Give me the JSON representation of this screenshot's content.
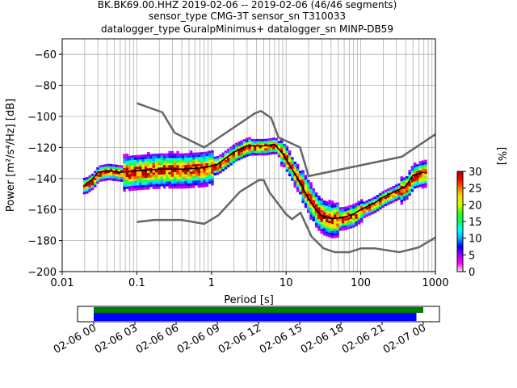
{
  "chart_data": {
    "type": "heatmap",
    "title_lines": [
      "BK.BK69.00.HHZ   2019-02-06 -- 2019-02-06  (46/46 segments)",
      "sensor_type CMG-3T sensor_sn T310033",
      "datalogger_type GuralpMinimus+ datalogger_sn MINP-DB59"
    ],
    "xlabel": "Period [s]",
    "ylabel": "Power [m²/s⁴/Hz] [dB]",
    "xscale": "log",
    "xlim": [
      0.01,
      1000
    ],
    "ylim": [
      -200,
      -50
    ],
    "grid": true,
    "x_ticks": [
      {
        "value": 0.01,
        "label": "0.01"
      },
      {
        "value": 0.1,
        "label": "0.1"
      },
      {
        "value": 1,
        "label": "1"
      },
      {
        "value": 10,
        "label": "10"
      },
      {
        "value": 100,
        "label": "100"
      },
      {
        "value": 1000,
        "label": "1000"
      }
    ],
    "y_ticks": [
      -60,
      -80,
      -100,
      -120,
      -140,
      -160,
      -180,
      -200
    ],
    "colorbar": {
      "label": "[%]",
      "range": [
        0,
        30
      ],
      "ticks": [
        0,
        5,
        10,
        15,
        20,
        25,
        30
      ],
      "colors": [
        "#ffffff",
        "#ff00ff",
        "#9900ff",
        "#0000ff",
        "#00aaff",
        "#00ffff",
        "#00ff66",
        "#33ff00",
        "#ccff00",
        "#ffdd00",
        "#ff7700",
        "#ff0000",
        "#aa0000"
      ]
    },
    "noise_models": {
      "color": "#666666",
      "high": [
        {
          "x": 0.1,
          "y": -91.5
        },
        {
          "x": 0.22,
          "y": -97.4
        },
        {
          "x": 0.32,
          "y": -110.5
        },
        {
          "x": 0.8,
          "y": -120
        },
        {
          "x": 3.8,
          "y": -98
        },
        {
          "x": 4.6,
          "y": -96.5
        },
        {
          "x": 6.3,
          "y": -101
        },
        {
          "x": 7.9,
          "y": -113.5
        },
        {
          "x": 15.4,
          "y": -120
        },
        {
          "x": 20,
          "y": -138.5
        },
        {
          "x": 354.8,
          "y": -126
        },
        {
          "x": 1000,
          "y": -111.5
        }
      ],
      "low": [
        {
          "x": 0.1,
          "y": -168
        },
        {
          "x": 0.17,
          "y": -166.7
        },
        {
          "x": 0.4,
          "y": -166.7
        },
        {
          "x": 0.8,
          "y": -169.2
        },
        {
          "x": 1.24,
          "y": -163.7
        },
        {
          "x": 2.4,
          "y": -148.6
        },
        {
          "x": 4.3,
          "y": -141.1
        },
        {
          "x": 5.0,
          "y": -141.1
        },
        {
          "x": 6.0,
          "y": -149
        },
        {
          "x": 10.0,
          "y": -163
        },
        {
          "x": 12.0,
          "y": -166.2
        },
        {
          "x": 15.6,
          "y": -162.1
        },
        {
          "x": 21.9,
          "y": -177.5
        },
        {
          "x": 31.6,
          "y": -185
        },
        {
          "x": 45,
          "y": -187.5
        },
        {
          "x": 70,
          "y": -187.5
        },
        {
          "x": 101,
          "y": -185
        },
        {
          "x": 154,
          "y": -185
        },
        {
          "x": 328,
          "y": -187.5
        },
        {
          "x": 600,
          "y": -184.4
        },
        {
          "x": 1000,
          "y": -178
        }
      ]
    },
    "mode_curve": {
      "color": "#000000",
      "points": [
        {
          "x": 0.02,
          "y": -144
        },
        {
          "x": 0.025,
          "y": -141
        },
        {
          "x": 0.03,
          "y": -136
        },
        {
          "x": 0.04,
          "y": -135
        },
        {
          "x": 0.06,
          "y": -136
        },
        {
          "x": 0.1,
          "y": -135
        },
        {
          "x": 0.2,
          "y": -134
        },
        {
          "x": 0.4,
          "y": -134
        },
        {
          "x": 0.8,
          "y": -133
        },
        {
          "x": 1.2,
          "y": -131
        },
        {
          "x": 2,
          "y": -123
        },
        {
          "x": 3,
          "y": -119
        },
        {
          "x": 5,
          "y": -119
        },
        {
          "x": 7,
          "y": -118
        },
        {
          "x": 9,
          "y": -124
        },
        {
          "x": 12,
          "y": -134
        },
        {
          "x": 15,
          "y": -142
        },
        {
          "x": 20,
          "y": -153
        },
        {
          "x": 25,
          "y": -160
        },
        {
          "x": 30,
          "y": -164
        },
        {
          "x": 40,
          "y": -166
        },
        {
          "x": 60,
          "y": -165
        },
        {
          "x": 80,
          "y": -163
        },
        {
          "x": 100,
          "y": -160
        },
        {
          "x": 150,
          "y": -156
        },
        {
          "x": 200,
          "y": -152
        },
        {
          "x": 300,
          "y": -148
        },
        {
          "x": 400,
          "y": -145
        },
        {
          "x": 500,
          "y": -138
        },
        {
          "x": 700,
          "y": -136
        }
      ]
    },
    "coverage": {
      "x_tick_labels": [
        "02-06 00",
        "02-06 03",
        "02-06 06",
        "02-06 09",
        "02-06 12",
        "02-06 15",
        "02-06 18",
        "02-06 21",
        "02-07 00"
      ],
      "bars": [
        {
          "color": "#008000",
          "start_hour": 0.0,
          "end_hour": 24.0
        },
        {
          "color": "#0000ff",
          "start_hour": 0.0,
          "end_hour": 23.5
        }
      ]
    }
  }
}
